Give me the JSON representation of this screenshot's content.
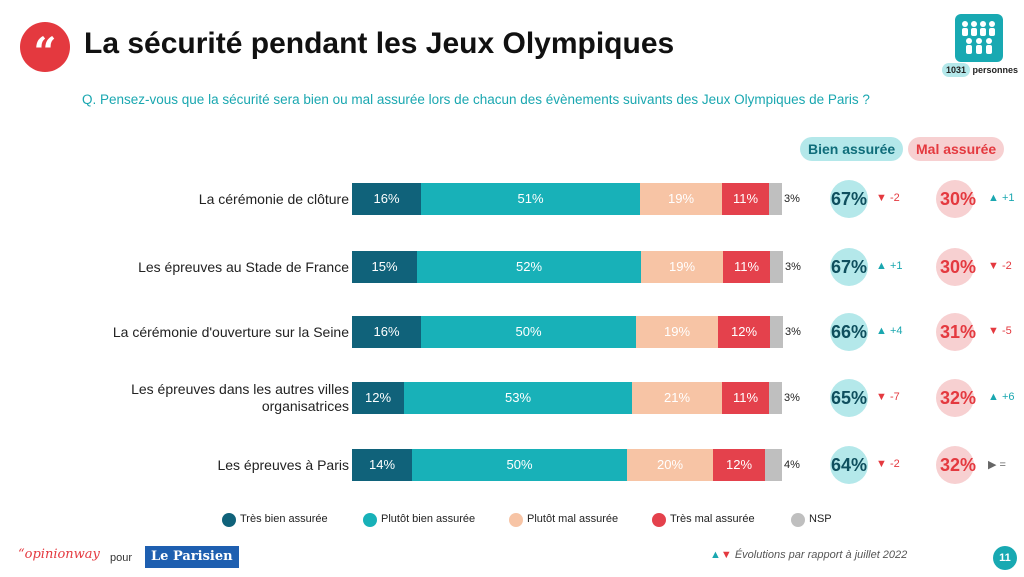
{
  "title": "La sécurité pendant les Jeux Olympiques",
  "question": "Q. Pensez-vous que la sécurité sera bien ou mal assurée lors de chacun des évènements suivants des Jeux Olympiques de Paris ?",
  "sample": {
    "count": "1031",
    "unit": "personnes"
  },
  "columns": {
    "bien": "Bien assurée",
    "mal": "Mal assurée"
  },
  "colors": {
    "tres_bien": "#10627a",
    "plutot_bien": "#18b1b8",
    "plutot_mal": "#f7c4a5",
    "tres_mal": "#e4414c",
    "nsp": "#bfbfbf",
    "up": "#1aa7b0",
    "down": "#e4393f",
    "equal": "#666666"
  },
  "chart_data": {
    "type": "bar",
    "orientation": "horizontal-stacked-100",
    "categories": [
      "La cérémonie de clôture",
      "Les épreuves au Stade de France",
      "La cérémonie d'ouverture sur la Seine",
      "Les épreuves dans les autres villes organisatrices",
      "Les épreuves à Paris"
    ],
    "series": [
      {
        "name": "Très bien assurée",
        "values": [
          16,
          15,
          16,
          12,
          14
        ]
      },
      {
        "name": "Plutôt bien assurée",
        "values": [
          51,
          52,
          50,
          53,
          50
        ]
      },
      {
        "name": "Plutôt mal assurée",
        "values": [
          19,
          19,
          19,
          21,
          20
        ]
      },
      {
        "name": "Très mal assurée",
        "values": [
          11,
          11,
          12,
          11,
          12
        ]
      },
      {
        "name": "NSP",
        "values": [
          3,
          3,
          3,
          3,
          4
        ]
      }
    ],
    "totals": {
      "bien": [
        67,
        67,
        66,
        65,
        64
      ],
      "mal": [
        30,
        30,
        31,
        32,
        32
      ]
    },
    "evolutions": {
      "bien": [
        {
          "dir": "down",
          "text": "-2"
        },
        {
          "dir": "up",
          "text": "+1"
        },
        {
          "dir": "up",
          "text": "+4"
        },
        {
          "dir": "down",
          "text": "-7"
        },
        {
          "dir": "down",
          "text": "-2"
        }
      ],
      "mal": [
        {
          "dir": "up",
          "text": "+1"
        },
        {
          "dir": "down",
          "text": "-2"
        },
        {
          "dir": "down",
          "text": "-5"
        },
        {
          "dir": "up",
          "text": "+6"
        },
        {
          "dir": "equal",
          "text": "="
        }
      ]
    },
    "legend": "bottom",
    "unit": "%"
  },
  "footer": {
    "brand": "“opinionway",
    "pour": "pour",
    "partner": "Le Parisien",
    "evolution_note": "Évolutions par rapport à juillet 2022",
    "page_number": "11"
  }
}
